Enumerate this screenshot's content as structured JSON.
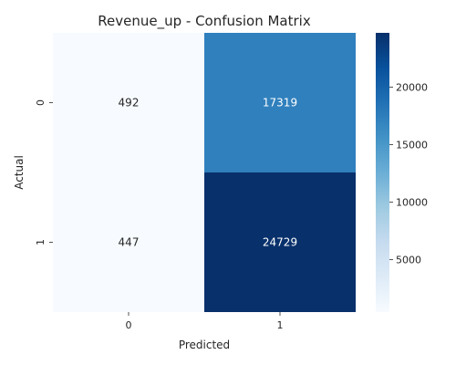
{
  "chart_data": {
    "type": "heatmap",
    "title": "Revenue_up - Confusion Matrix",
    "xlabel": "Predicted",
    "ylabel": "Actual",
    "x_categories": [
      "0",
      "1"
    ],
    "y_categories": [
      "0",
      "1"
    ],
    "values": [
      [
        492,
        17319
      ],
      [
        447,
        24729
      ]
    ],
    "annotations": [
      [
        "492",
        "17319"
      ],
      [
        "447",
        "24729"
      ]
    ],
    "colorscale": "Blues",
    "colorbar": {
      "range": [
        447,
        24729
      ],
      "ticks": [
        5000,
        10000,
        15000,
        20000
      ],
      "tick_labels": [
        "5000",
        "10000",
        "15000",
        "20000"
      ]
    },
    "grid": false,
    "legend": "colorbar-right"
  }
}
